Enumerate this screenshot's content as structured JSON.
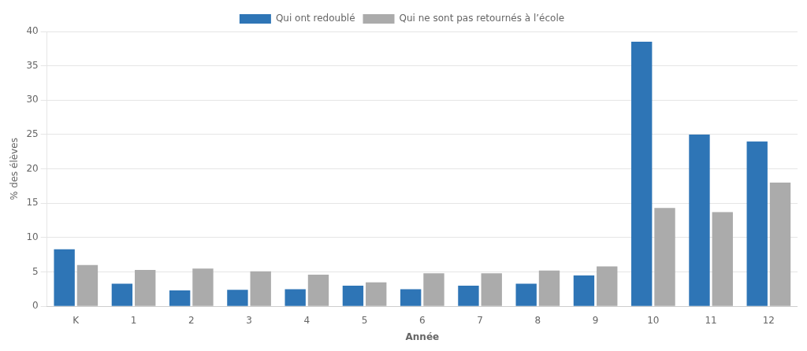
{
  "chart_data": {
    "type": "bar",
    "categories": [
      "K",
      "1",
      "2",
      "3",
      "4",
      "5",
      "6",
      "7",
      "8",
      "9",
      "10",
      "11",
      "12"
    ],
    "series": [
      {
        "name": "Qui ont redoublé",
        "color": "#2e75b6",
        "values": [
          8.3,
          3.3,
          2.3,
          2.4,
          2.5,
          3.0,
          2.5,
          3.0,
          3.3,
          4.5,
          38.5,
          25.0,
          24.0
        ]
      },
      {
        "name": "Qui ne sont pas retournés à l’école",
        "color": "#ababab",
        "values": [
          6.0,
          5.3,
          5.5,
          5.1,
          4.6,
          3.5,
          4.8,
          4.8,
          5.2,
          5.8,
          14.3,
          13.7,
          18.0
        ]
      }
    ],
    "xlabel": "Année",
    "ylabel": "% des élèves",
    "ylim": [
      0,
      40
    ],
    "yticks": [
      0,
      5,
      10,
      15,
      20,
      25,
      30,
      35,
      40
    ],
    "grid": true,
    "legend": "top"
  }
}
